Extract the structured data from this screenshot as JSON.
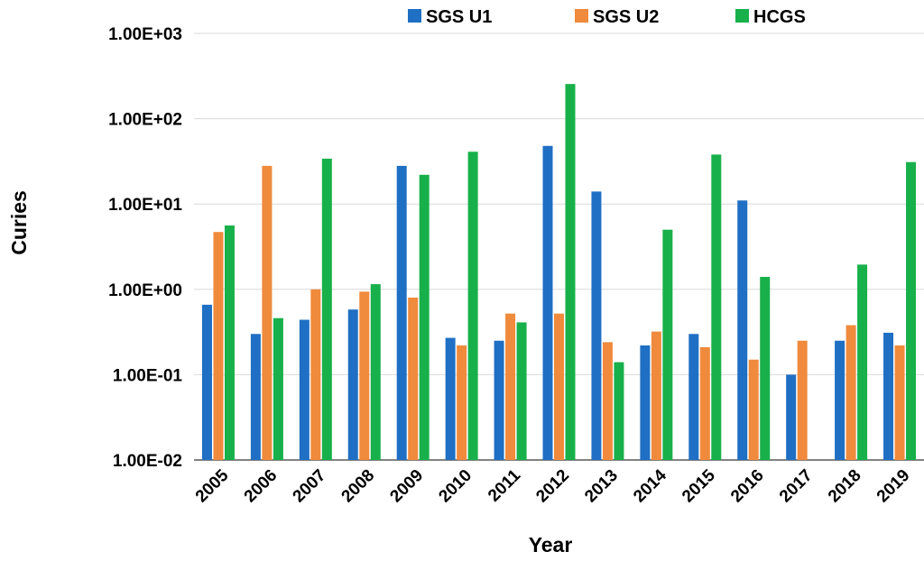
{
  "chart_data": {
    "type": "bar",
    "title": "",
    "xlabel": "Year",
    "ylabel": "Curies",
    "yscale": "log",
    "ylim": [
      0.01,
      1000
    ],
    "grid": "horizontal",
    "legend_position": "top",
    "categories": [
      "2005",
      "2006",
      "2007",
      "2008",
      "2009",
      "2010",
      "2011",
      "2012",
      "2013",
      "2014",
      "2015",
      "2016",
      "2017",
      "2018",
      "2019"
    ],
    "yticks": [
      {
        "value": 0.01,
        "label": "1.00E-02"
      },
      {
        "value": 0.1,
        "label": "1.00E-01"
      },
      {
        "value": 1,
        "label": "1.00E+00"
      },
      {
        "value": 10,
        "label": "1.00E+01"
      },
      {
        "value": 100,
        "label": "1.00E+02"
      },
      {
        "value": 1000,
        "label": "1.00E+03"
      }
    ],
    "series": [
      {
        "name": "SGS U1",
        "color": "#1f6fc4",
        "values": [
          0.66,
          0.3,
          0.44,
          0.58,
          28,
          0.27,
          0.25,
          48,
          14,
          0.22,
          0.3,
          11,
          0.1,
          0.25,
          0.31
        ]
      },
      {
        "name": "SGS U2",
        "color": "#f08a3c",
        "values": [
          4.7,
          28,
          1.0,
          0.94,
          0.8,
          0.22,
          0.52,
          0.52,
          0.24,
          0.32,
          0.21,
          0.15,
          0.25,
          0.38,
          0.22
        ]
      },
      {
        "name": "HCGS",
        "color": "#18b04a",
        "values": [
          5.6,
          0.46,
          34,
          1.15,
          22,
          41,
          0.41,
          255,
          0.14,
          5.0,
          38,
          1.4,
          null,
          1.95,
          31
        ]
      }
    ]
  }
}
